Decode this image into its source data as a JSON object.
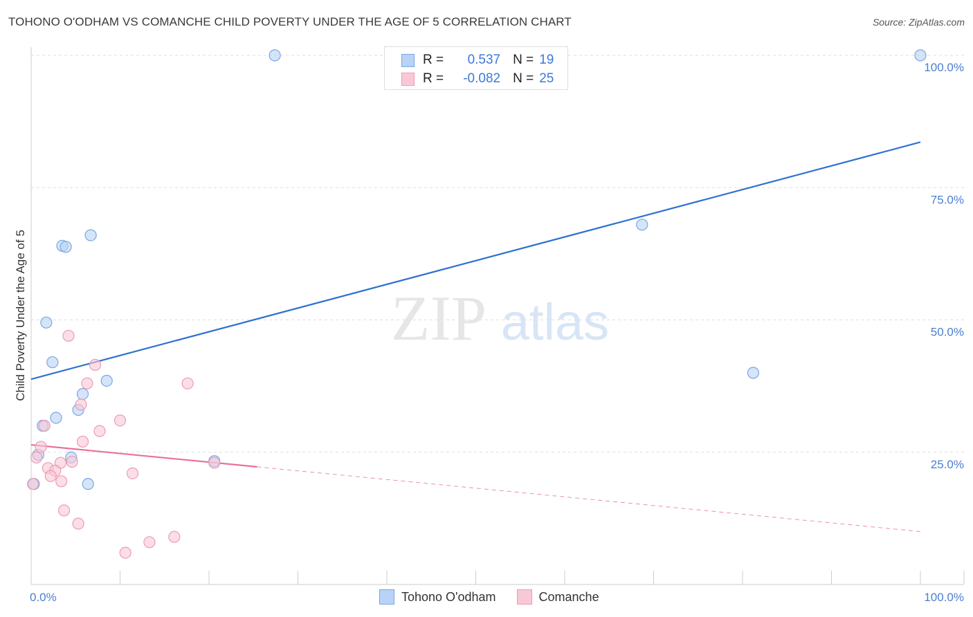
{
  "header": {
    "title": "TOHONO O'ODHAM VS COMANCHE CHILD POVERTY UNDER THE AGE OF 5 CORRELATION CHART",
    "source": "Source: ZipAtlas.com"
  },
  "legend": {
    "r_label": "R =",
    "n_label": "N =",
    "series": [
      {
        "name": "Tohono O'odham",
        "r": "0.537",
        "n": "19"
      },
      {
        "name": "Comanche",
        "r": "-0.082",
        "n": "25"
      }
    ]
  },
  "watermark": {
    "zip": "ZIP",
    "atlas": "atlas"
  },
  "colors": {
    "blue_fill": "#b8d3f5",
    "blue_stroke": "#7aa6e0",
    "blue_line": "#2f72d0",
    "pink_fill": "#f8c8d6",
    "pink_stroke": "#ee9ab4",
    "pink_line": "#e8709a",
    "grid": "#dddddd",
    "tick_text": "#4a7fd0"
  },
  "chart_data": {
    "type": "scatter",
    "title": "TOHONO O'ODHAM VS COMANCHE CHILD POVERTY UNDER THE AGE OF 5 CORRELATION CHART",
    "xlabel": "",
    "ylabel": "Child Poverty Under the Age of 5",
    "xlim": [
      0,
      100
    ],
    "ylim": [
      0,
      100
    ],
    "x_tick_labels": [
      "0.0%",
      "100.0%"
    ],
    "y_ticks": [
      25,
      50,
      75,
      100
    ],
    "y_tick_labels": [
      "25.0%",
      "50.0%",
      "75.0%",
      "100.0%"
    ],
    "grid": true,
    "series": [
      {
        "name": "Tohono O'odham",
        "color": "blue",
        "points": [
          {
            "x": 27.4,
            "y": 100.0
          },
          {
            "x": 100.0,
            "y": 100.0
          },
          {
            "x": 68.7,
            "y": 68.0
          },
          {
            "x": 6.7,
            "y": 66.0
          },
          {
            "x": 3.5,
            "y": 64.0
          },
          {
            "x": 3.9,
            "y": 63.8
          },
          {
            "x": 1.7,
            "y": 49.5
          },
          {
            "x": 2.4,
            "y": 42.0
          },
          {
            "x": 8.5,
            "y": 38.5
          },
          {
            "x": 5.8,
            "y": 36.0
          },
          {
            "x": 5.3,
            "y": 33.0
          },
          {
            "x": 2.8,
            "y": 31.5
          },
          {
            "x": 1.3,
            "y": 30.0
          },
          {
            "x": 0.8,
            "y": 24.5
          },
          {
            "x": 4.5,
            "y": 24.0
          },
          {
            "x": 20.6,
            "y": 23.3
          },
          {
            "x": 6.4,
            "y": 19.0
          },
          {
            "x": 0.3,
            "y": 19.0
          },
          {
            "x": 81.2,
            "y": 40.0
          }
        ],
        "trend": {
          "x0": 0,
          "y0": 38.8,
          "x1": 100,
          "y1": 83.6,
          "dash_from": null
        }
      },
      {
        "name": "Comanche",
        "color": "pink",
        "points": [
          {
            "x": 4.2,
            "y": 47.0
          },
          {
            "x": 7.2,
            "y": 41.5
          },
          {
            "x": 17.6,
            "y": 38.0
          },
          {
            "x": 6.3,
            "y": 38.0
          },
          {
            "x": 5.6,
            "y": 34.0
          },
          {
            "x": 10.0,
            "y": 31.0
          },
          {
            "x": 1.5,
            "y": 30.0
          },
          {
            "x": 7.7,
            "y": 29.0
          },
          {
            "x": 5.8,
            "y": 27.0
          },
          {
            "x": 1.1,
            "y": 26.0
          },
          {
            "x": 0.6,
            "y": 24.0
          },
          {
            "x": 3.3,
            "y": 23.0
          },
          {
            "x": 4.6,
            "y": 23.2
          },
          {
            "x": 20.6,
            "y": 23.0
          },
          {
            "x": 1.9,
            "y": 22.0
          },
          {
            "x": 2.7,
            "y": 21.5
          },
          {
            "x": 2.2,
            "y": 20.5
          },
          {
            "x": 11.4,
            "y": 21.0
          },
          {
            "x": 3.4,
            "y": 19.5
          },
          {
            "x": 0.2,
            "y": 19.0
          },
          {
            "x": 3.7,
            "y": 14.0
          },
          {
            "x": 5.3,
            "y": 11.5
          },
          {
            "x": 16.1,
            "y": 9.0
          },
          {
            "x": 13.3,
            "y": 8.0
          },
          {
            "x": 10.6,
            "y": 6.0
          }
        ],
        "trend": {
          "x0": 0,
          "y0": 26.4,
          "x1": 100,
          "y1": 10.0,
          "dash_from": 25.4
        }
      }
    ]
  }
}
